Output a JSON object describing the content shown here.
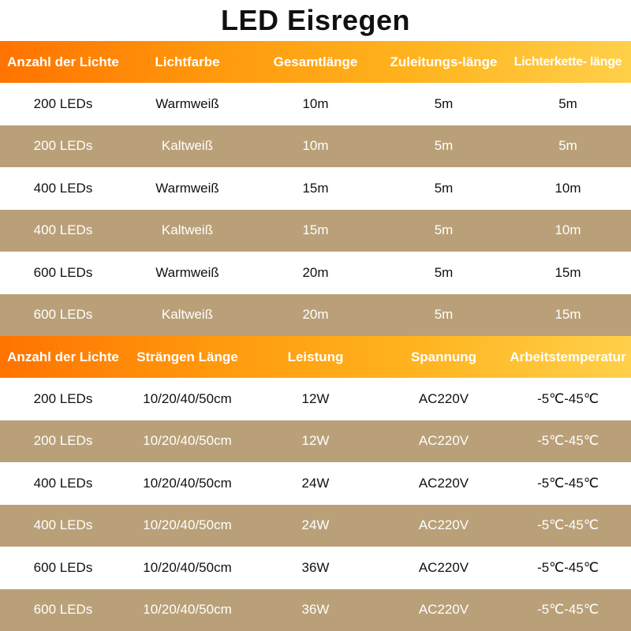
{
  "title": "LED Eisregen",
  "table1": {
    "headers": [
      "Anzahl der Lichte",
      "Lichtfarbe",
      "Gesamtlänge",
      "Zuleitungs-länge",
      "Lichterkette- länge"
    ],
    "rows": [
      [
        "200 LEDs",
        "Warmweiß",
        "10m",
        "5m",
        "5m"
      ],
      [
        "200 LEDs",
        "Kaltweiß",
        "10m",
        "5m",
        "5m"
      ],
      [
        "400 LEDs",
        "Warmweiß",
        "15m",
        "5m",
        "10m"
      ],
      [
        "400 LEDs",
        "Kaltweiß",
        "15m",
        "5m",
        "10m"
      ],
      [
        "600 LEDs",
        "Warmweiß",
        "20m",
        "5m",
        "15m"
      ],
      [
        "600 LEDs",
        "Kaltweiß",
        "20m",
        "5m",
        "15m"
      ]
    ]
  },
  "table2": {
    "headers": [
      "Anzahl der Lichte",
      "Strängen Länge",
      "Leistung",
      "Spannung",
      "Arbeitstemperatur"
    ],
    "rows": [
      [
        "200 LEDs",
        "10/20/40/50cm",
        "12W",
        "AC220V",
        "-5℃-45℃"
      ],
      [
        "200 LEDs",
        "10/20/40/50cm",
        "12W",
        "AC220V",
        "-5℃-45℃"
      ],
      [
        "400 LEDs",
        "10/20/40/50cm",
        "24W",
        "AC220V",
        "-5℃-45℃"
      ],
      [
        "400 LEDs",
        "10/20/40/50cm",
        "24W",
        "AC220V",
        "-5℃-45℃"
      ],
      [
        "600 LEDs",
        "10/20/40/50cm",
        "36W",
        "AC220V",
        "-5℃-45℃"
      ],
      [
        "600 LEDs",
        "10/20/40/50cm",
        "36W",
        "AC220V",
        "-5℃-45℃"
      ]
    ]
  },
  "colors": {
    "header_gradient_start": "#ff7300",
    "header_gradient_end": "#ffd04a",
    "alt_row": "#b9a078",
    "white_row": "#ffffff"
  }
}
